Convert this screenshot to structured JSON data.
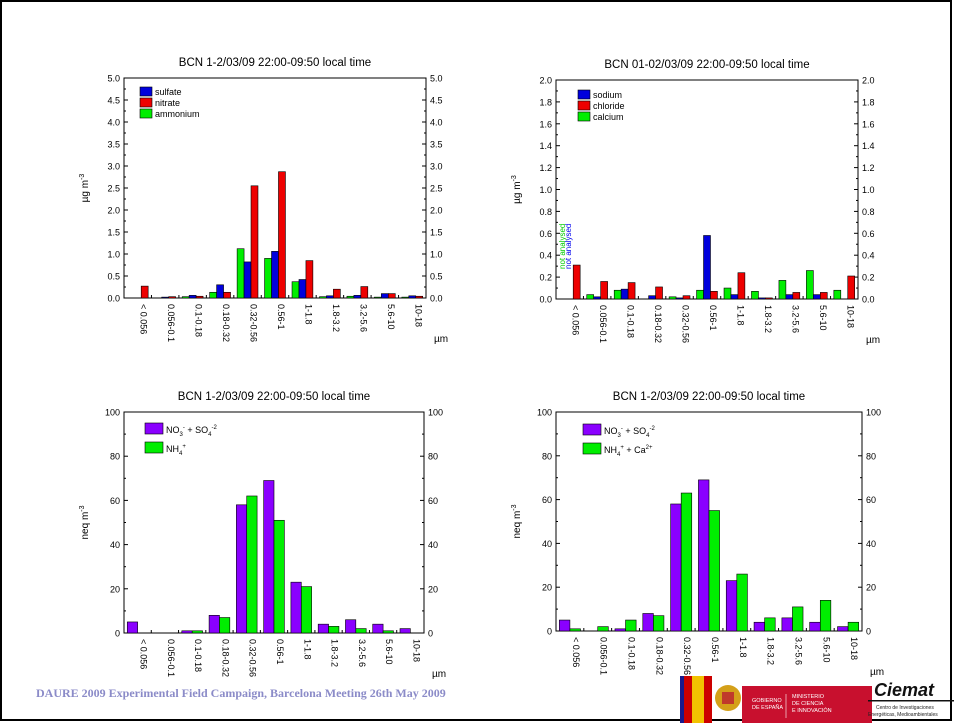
{
  "footer": {
    "text": "DAURE 2009 Experimental Field  Campaign, Barcelona  Meeting 26th May 2009",
    "gov_line1": "GOBIERNO",
    "gov_line2": "DE ESPAÑA",
    "min_line1": "MINISTERIO",
    "min_line2": "DE CIENCIA",
    "min_line3": "E INNOVACIÓN",
    "ciemat_name": "Ciemat",
    "ciemat_sub1": "Centro de Investigaciones",
    "ciemat_sub2": "Energéticas, Medioambientales"
  },
  "chart_data": [
    {
      "type": "bar",
      "title": "BCN 1-2/03/09   22:00-09:50 local time",
      "ylabel_main": "µg m",
      "ylabel_sup": "-3",
      "xlabel": "µm",
      "ylim": [
        0,
        5.0
      ],
      "yticks": [
        "0.0",
        "0.5",
        "1.0",
        "1.5",
        "2.0",
        "2.5",
        "3.0",
        "3.5",
        "4.0",
        "4.5",
        "5.0"
      ],
      "categories": [
        "< 0.056",
        "0.056-0.1",
        "0.1-0.18",
        "0.18-0.32",
        "0.32-0.56",
        "0.56-1",
        "1-1.8",
        "1.8-3.2",
        "3.2-5.6",
        "5.6-10",
        "10-18"
      ],
      "legend": "top-left",
      "series": [
        {
          "name": "ammonium",
          "color": "#00ee00",
          "values": [
            0.0,
            0.0,
            0.03,
            0.13,
            1.12,
            0.9,
            0.37,
            0.03,
            0.04,
            0.02,
            0.02
          ],
          "legend_label": "ammonium"
        },
        {
          "name": "sulfate",
          "color": "#0000dd",
          "values": [
            0.0,
            0.02,
            0.06,
            0.3,
            0.82,
            1.06,
            0.42,
            0.05,
            0.06,
            0.1,
            0.05
          ],
          "legend_label": "sulfate"
        },
        {
          "name": "nitrate",
          "color": "#ee0000",
          "values": [
            0.27,
            0.03,
            0.04,
            0.13,
            2.55,
            2.87,
            0.85,
            0.2,
            0.26,
            0.1,
            0.04
          ],
          "legend_label": "nitrate"
        }
      ],
      "annotations": []
    },
    {
      "type": "bar",
      "title": "BCN 01-02/03/09   22:00-09:50 local time",
      "ylabel_main": "µg m",
      "ylabel_sup": "-3",
      "xlabel": "µm",
      "ylim": [
        0,
        2.0
      ],
      "yticks": [
        "0.0",
        "0.2",
        "0.4",
        "0.6",
        "0.8",
        "1.0",
        "1.2",
        "1.4",
        "1.6",
        "1.8",
        "2.0"
      ],
      "categories": [
        "< 0.056",
        "0.056-0.1",
        "0.1-0.18",
        "0.18-0.32",
        "0.32-0.56",
        "0.56-1",
        "1-1.8",
        "1.8-3.2",
        "3.2-5.6",
        "5.6-10",
        "10-18"
      ],
      "legend": "top-left",
      "series": [
        {
          "name": "calcium",
          "color": "#00ee00",
          "values": [
            0.0,
            0.04,
            0.08,
            0.0,
            0.02,
            0.08,
            0.1,
            0.07,
            0.17,
            0.26,
            0.08
          ],
          "legend_label": "calcium"
        },
        {
          "name": "sodium",
          "color": "#0000dd",
          "values": [
            0.0,
            0.02,
            0.09,
            0.03,
            0.01,
            0.58,
            0.04,
            0.01,
            0.04,
            0.04,
            0.0
          ],
          "legend_label": "sodium"
        },
        {
          "name": "chloride",
          "color": "#ee0000",
          "values": [
            0.31,
            0.16,
            0.15,
            0.11,
            0.03,
            0.07,
            0.24,
            0.01,
            0.06,
            0.06,
            0.21
          ],
          "legend_label": "chloride"
        }
      ],
      "annotations": [
        {
          "text": "not analysed",
          "color": "#00cc00"
        },
        {
          "text": "not analysed",
          "color": "#0000ee"
        }
      ]
    },
    {
      "type": "bar",
      "title": "BCN 1-2/03/09   22:00-09:50 local time",
      "ylabel_main": "neq m",
      "ylabel_sup": "-3",
      "xlabel": "µm",
      "ylim": [
        0,
        100
      ],
      "yticks": [
        "0",
        "20",
        "40",
        "60",
        "80",
        "100"
      ],
      "categories": [
        "< 0.056",
        "0.056-0.1",
        "0.1-0.18",
        "0.18-0.32",
        "0.32-0.56",
        "0.56-1",
        "1-1.8",
        "1.8-3.2",
        "3.2-5.6",
        "5.6-10",
        "10-18"
      ],
      "legend": "top-left",
      "series": [
        {
          "name": "NO3- + SO4-2",
          "color": "#8a00ff",
          "values": [
            5,
            0,
            1,
            8,
            58,
            69,
            23,
            4,
            6,
            4,
            2
          ],
          "legend_label": "NO3- + SO4-2"
        },
        {
          "name": "NH4+",
          "color": "#00ee00",
          "values": [
            0,
            0,
            1,
            7,
            62,
            51,
            21,
            3,
            2,
            1,
            0
          ],
          "legend_label": "NH4+"
        }
      ],
      "annotations": []
    },
    {
      "type": "bar",
      "title": "BCN 1-2/03/09   22:00-09:50 local time",
      "ylabel_main": "neq m",
      "ylabel_sup": "-3",
      "xlabel": "µm",
      "ylim": [
        0,
        100
      ],
      "yticks": [
        "0",
        "20",
        "40",
        "60",
        "80",
        "100"
      ],
      "categories": [
        "< 0.056",
        "0.056-0.1",
        "0.1-0.18",
        "0.18-0.32",
        "0.32-0.56",
        "0.56-1",
        "1-1.8",
        "1.8-3.2",
        "3.2-5.6",
        "5.6-10",
        "10-18"
      ],
      "legend": "top-left",
      "series": [
        {
          "name": "NO3- + SO4-2",
          "color": "#8a00ff",
          "values": [
            5,
            0,
            1,
            8,
            58,
            69,
            23,
            4,
            6,
            4,
            2
          ],
          "legend_label": "NO3- + SO4-2"
        },
        {
          "name": "NH4+ + Ca2+",
          "color": "#00ee00",
          "values": [
            1,
            2,
            5,
            7,
            63,
            55,
            26,
            6,
            11,
            14,
            4
          ],
          "legend_label": "NH4+ + Ca2+"
        }
      ],
      "annotations": []
    }
  ]
}
